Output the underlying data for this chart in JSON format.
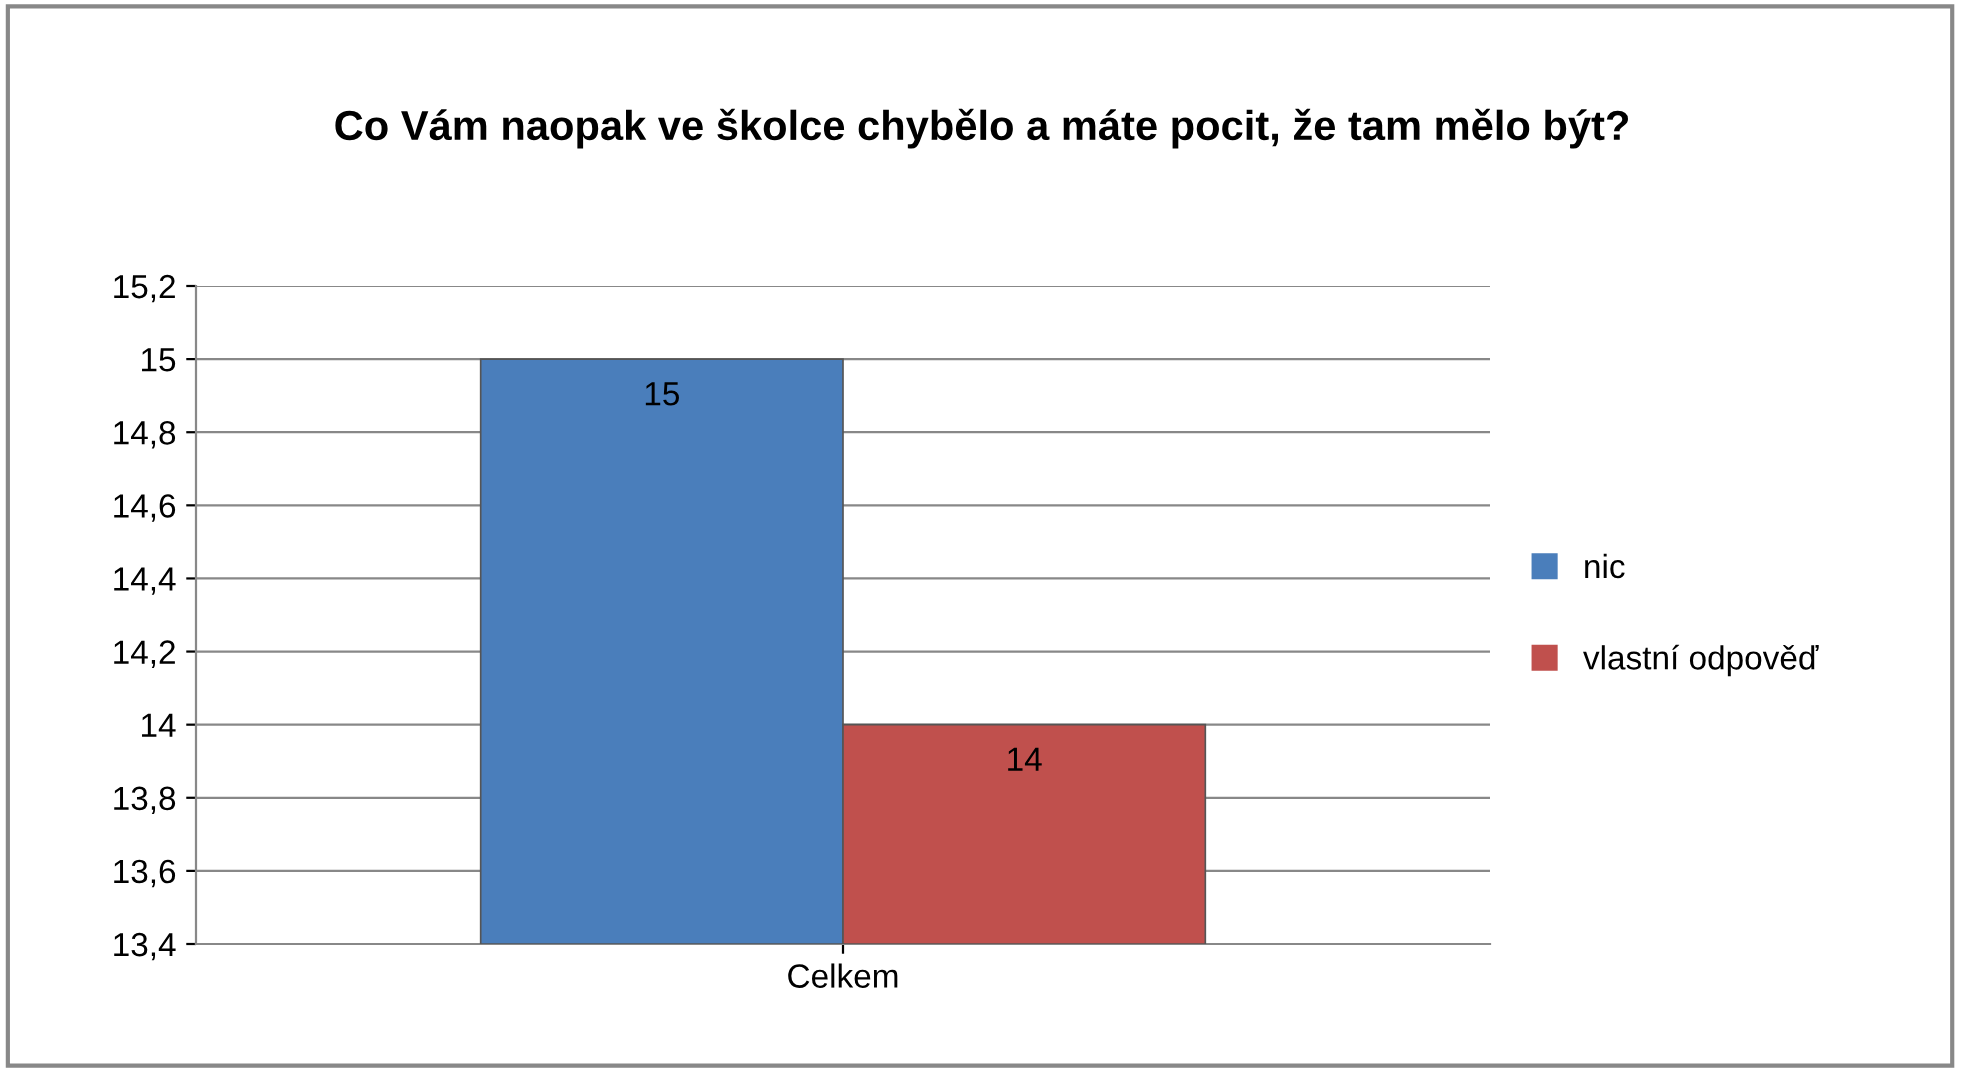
{
  "chart_data": {
    "type": "bar",
    "title": "Co Vám naopak ve školce chybělo a máte pocit, že tam mělo být?",
    "categories": [
      "Celkem"
    ],
    "series": [
      {
        "name": "nic",
        "color": "#4a7ebb",
        "values": [
          15
        ]
      },
      {
        "name": "vlastní odpověď",
        "color": "#c0504d",
        "values": [
          14
        ]
      }
    ],
    "ylim": [
      13.4,
      15.2
    ],
    "yticks": [
      {
        "value": 13.4,
        "label": "13,4"
      },
      {
        "value": 13.6,
        "label": "13,6"
      },
      {
        "value": 13.8,
        "label": "13,8"
      },
      14,
      {
        "value": 14.2,
        "label": "14,2"
      },
      {
        "value": 14.4,
        "label": "14,4"
      },
      {
        "value": 14.6,
        "label": "14,6"
      },
      {
        "value": 14.8,
        "label": "14,8"
      },
      15,
      {
        "value": 15.2,
        "label": "15,2"
      }
    ],
    "grid": "y",
    "legend": "right",
    "data_labels": true
  }
}
